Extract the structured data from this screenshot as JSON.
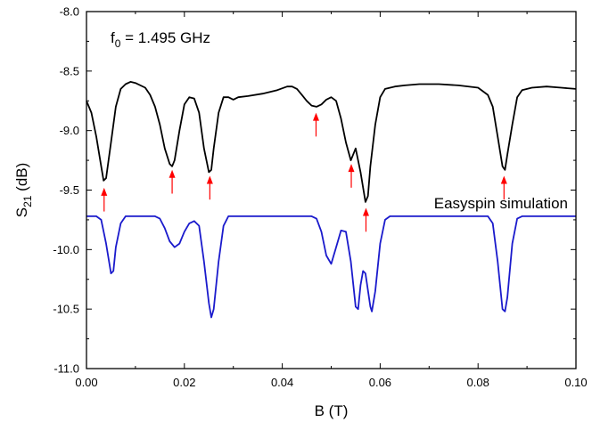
{
  "chart_data": {
    "type": "line",
    "title": "",
    "xlabel": "B (T)",
    "ylabel_main": "S",
    "ylabel_sub": "21",
    "ylabel_unit": " (dB)",
    "xlim": [
      0.0,
      0.1
    ],
    "ylim": [
      -11.0,
      -8.0
    ],
    "xticks": [
      0.0,
      0.02,
      0.04,
      0.06,
      0.08,
      0.1
    ],
    "xtick_labels": [
      "0.00",
      "0.02",
      "0.04",
      "0.06",
      "0.08",
      "0.10"
    ],
    "yticks": [
      -8.0,
      -8.5,
      -9.0,
      -9.5,
      -10.0,
      -10.5,
      -11.0
    ],
    "ytick_labels": [
      "-8.0",
      "-8.5",
      "-9.0",
      "-9.5",
      "-10.0",
      "-10.5",
      "-11.0"
    ],
    "grid": false,
    "annotation": {
      "main": "f",
      "sub": "0",
      "rest": " = 1.495 GHz"
    },
    "series": [
      {
        "color": "#000000",
        "points": [
          [
            0.0,
            -8.75
          ],
          [
            0.001,
            -8.85
          ],
          [
            0.002,
            -9.05
          ],
          [
            0.003,
            -9.3
          ],
          [
            0.0035,
            -9.42
          ],
          [
            0.004,
            -9.4
          ],
          [
            0.005,
            -9.1
          ],
          [
            0.006,
            -8.8
          ],
          [
            0.007,
            -8.65
          ],
          [
            0.008,
            -8.61
          ],
          [
            0.009,
            -8.59
          ],
          [
            0.01,
            -8.6
          ],
          [
            0.012,
            -8.64
          ],
          [
            0.013,
            -8.7
          ],
          [
            0.014,
            -8.8
          ],
          [
            0.015,
            -8.95
          ],
          [
            0.016,
            -9.15
          ],
          [
            0.017,
            -9.28
          ],
          [
            0.0175,
            -9.3
          ],
          [
            0.018,
            -9.25
          ],
          [
            0.019,
            -9.0
          ],
          [
            0.02,
            -8.78
          ],
          [
            0.021,
            -8.72
          ],
          [
            0.022,
            -8.73
          ],
          [
            0.023,
            -8.85
          ],
          [
            0.024,
            -9.15
          ],
          [
            0.025,
            -9.35
          ],
          [
            0.0255,
            -9.33
          ],
          [
            0.026,
            -9.15
          ],
          [
            0.027,
            -8.85
          ],
          [
            0.028,
            -8.72
          ],
          [
            0.029,
            -8.72
          ],
          [
            0.03,
            -8.74
          ],
          [
            0.031,
            -8.72
          ],
          [
            0.033,
            -8.71
          ],
          [
            0.036,
            -8.69
          ],
          [
            0.039,
            -8.66
          ],
          [
            0.041,
            -8.63
          ],
          [
            0.042,
            -8.63
          ],
          [
            0.043,
            -8.65
          ],
          [
            0.044,
            -8.7
          ],
          [
            0.045,
            -8.75
          ],
          [
            0.046,
            -8.79
          ],
          [
            0.047,
            -8.8
          ],
          [
            0.048,
            -8.78
          ],
          [
            0.049,
            -8.74
          ],
          [
            0.05,
            -8.72
          ],
          [
            0.051,
            -8.75
          ],
          [
            0.052,
            -8.9
          ],
          [
            0.053,
            -9.1
          ],
          [
            0.054,
            -9.25
          ],
          [
            0.0545,
            -9.2
          ],
          [
            0.055,
            -9.15
          ],
          [
            0.056,
            -9.35
          ],
          [
            0.057,
            -9.6
          ],
          [
            0.0575,
            -9.55
          ],
          [
            0.058,
            -9.3
          ],
          [
            0.059,
            -8.95
          ],
          [
            0.06,
            -8.72
          ],
          [
            0.061,
            -8.65
          ],
          [
            0.063,
            -8.63
          ],
          [
            0.065,
            -8.62
          ],
          [
            0.068,
            -8.61
          ],
          [
            0.072,
            -8.61
          ],
          [
            0.076,
            -8.62
          ],
          [
            0.08,
            -8.64
          ],
          [
            0.082,
            -8.7
          ],
          [
            0.083,
            -8.8
          ],
          [
            0.084,
            -9.05
          ],
          [
            0.085,
            -9.3
          ],
          [
            0.0855,
            -9.33
          ],
          [
            0.086,
            -9.2
          ],
          [
            0.087,
            -8.95
          ],
          [
            0.088,
            -8.72
          ],
          [
            0.089,
            -8.66
          ],
          [
            0.091,
            -8.64
          ],
          [
            0.094,
            -8.63
          ],
          [
            0.097,
            -8.64
          ],
          [
            0.1,
            -8.65
          ]
        ]
      },
      {
        "name": "Easyspin simulation",
        "color": "#1a1acc",
        "points": [
          [
            0.0,
            -9.72
          ],
          [
            0.002,
            -9.72
          ],
          [
            0.003,
            -9.75
          ],
          [
            0.004,
            -9.95
          ],
          [
            0.005,
            -10.2
          ],
          [
            0.0055,
            -10.18
          ],
          [
            0.006,
            -9.98
          ],
          [
            0.007,
            -9.78
          ],
          [
            0.008,
            -9.72
          ],
          [
            0.014,
            -9.72
          ],
          [
            0.015,
            -9.74
          ],
          [
            0.016,
            -9.82
          ],
          [
            0.017,
            -9.93
          ],
          [
            0.018,
            -9.98
          ],
          [
            0.019,
            -9.95
          ],
          [
            0.02,
            -9.85
          ],
          [
            0.021,
            -9.78
          ],
          [
            0.022,
            -9.76
          ],
          [
            0.023,
            -9.8
          ],
          [
            0.024,
            -10.1
          ],
          [
            0.025,
            -10.45
          ],
          [
            0.0255,
            -10.57
          ],
          [
            0.026,
            -10.5
          ],
          [
            0.027,
            -10.1
          ],
          [
            0.028,
            -9.8
          ],
          [
            0.029,
            -9.72
          ],
          [
            0.046,
            -9.72
          ],
          [
            0.047,
            -9.74
          ],
          [
            0.048,
            -9.85
          ],
          [
            0.049,
            -10.05
          ],
          [
            0.05,
            -10.12
          ],
          [
            0.051,
            -9.98
          ],
          [
            0.052,
            -9.84
          ],
          [
            0.053,
            -9.85
          ],
          [
            0.054,
            -10.1
          ],
          [
            0.055,
            -10.48
          ],
          [
            0.0555,
            -10.5
          ],
          [
            0.056,
            -10.3
          ],
          [
            0.0565,
            -10.18
          ],
          [
            0.057,
            -10.2
          ],
          [
            0.058,
            -10.48
          ],
          [
            0.0583,
            -10.52
          ],
          [
            0.059,
            -10.35
          ],
          [
            0.06,
            -9.95
          ],
          [
            0.061,
            -9.75
          ],
          [
            0.062,
            -9.72
          ],
          [
            0.082,
            -9.72
          ],
          [
            0.083,
            -9.78
          ],
          [
            0.084,
            -10.1
          ],
          [
            0.085,
            -10.5
          ],
          [
            0.0855,
            -10.52
          ],
          [
            0.086,
            -10.4
          ],
          [
            0.087,
            -9.95
          ],
          [
            0.088,
            -9.74
          ],
          [
            0.089,
            -9.72
          ],
          [
            0.1,
            -9.72
          ]
        ]
      }
    ],
    "arrows": {
      "color": "#ff0000",
      "markers": [
        {
          "x": 0.0036,
          "y_tip": -9.48,
          "y_tail": -9.68
        },
        {
          "x": 0.0175,
          "y_tip": -9.33,
          "y_tail": -9.53
        },
        {
          "x": 0.0252,
          "y_tip": -9.38,
          "y_tail": -9.58
        },
        {
          "x": 0.0469,
          "y_tip": -8.85,
          "y_tail": -9.05
        },
        {
          "x": 0.0541,
          "y_tip": -9.28,
          "y_tail": -9.48
        },
        {
          "x": 0.0571,
          "y_tip": -9.65,
          "y_tail": -9.85
        },
        {
          "x": 0.0853,
          "y_tip": -9.38,
          "y_tail": -9.58
        }
      ]
    }
  }
}
